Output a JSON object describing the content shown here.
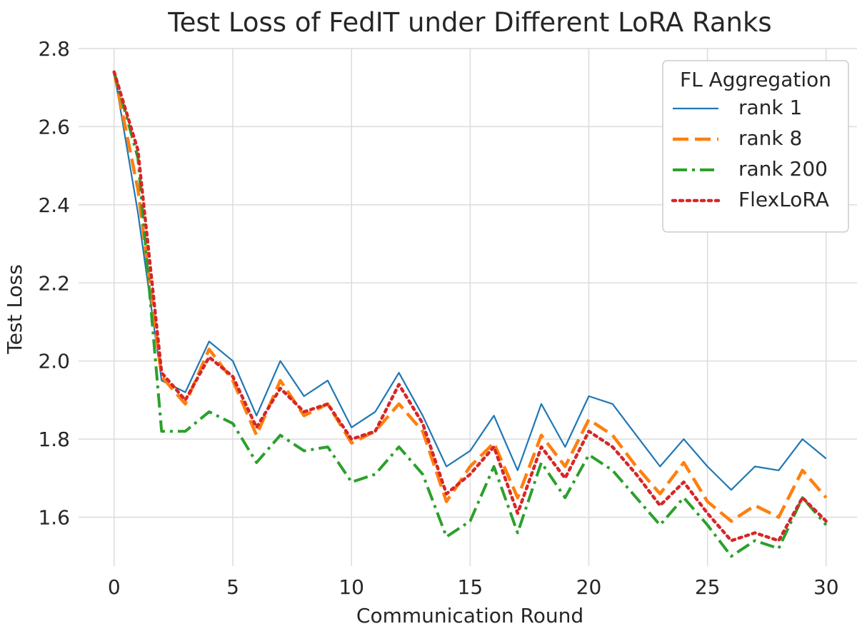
{
  "chart_data": {
    "type": "line",
    "title": "Test Loss of FedIT under Different LoRA Ranks",
    "xlabel": "Communication Round",
    "ylabel": "Test Loss",
    "xlim": [
      -1.5,
      31.3
    ],
    "ylim": [
      1.475,
      2.8
    ],
    "xticks": [
      0,
      5,
      10,
      15,
      20,
      25,
      30
    ],
    "yticks": [
      1.6,
      1.8,
      2.0,
      2.2,
      2.4,
      2.6,
      2.8
    ],
    "grid": true,
    "legend": {
      "title": "FL Aggregation",
      "position": "top-right"
    },
    "x": [
      0,
      1,
      2,
      3,
      4,
      5,
      6,
      7,
      8,
      9,
      10,
      11,
      12,
      13,
      14,
      15,
      16,
      17,
      18,
      19,
      20,
      21,
      22,
      23,
      24,
      25,
      26,
      27,
      28,
      29,
      30
    ],
    "series": [
      {
        "name": "rank 1",
        "color": "#1f77b4",
        "dash": "solid",
        "values": [
          2.74,
          2.38,
          1.95,
          1.92,
          2.05,
          2.0,
          1.86,
          2.0,
          1.91,
          1.95,
          1.83,
          1.87,
          1.97,
          1.86,
          1.73,
          1.77,
          1.86,
          1.72,
          1.89,
          1.78,
          1.91,
          1.89,
          1.81,
          1.73,
          1.8,
          1.73,
          1.67,
          1.73,
          1.72,
          1.8,
          1.75
        ]
      },
      {
        "name": "rank 8",
        "color": "#ff7f0e",
        "dash": "dashed",
        "values": [
          2.74,
          2.44,
          1.96,
          1.89,
          2.03,
          1.95,
          1.81,
          1.95,
          1.86,
          1.89,
          1.79,
          1.82,
          1.89,
          1.82,
          1.64,
          1.73,
          1.79,
          1.65,
          1.81,
          1.73,
          1.85,
          1.81,
          1.73,
          1.66,
          1.74,
          1.64,
          1.59,
          1.63,
          1.6,
          1.72,
          1.65
        ]
      },
      {
        "name": "rank 200",
        "color": "#2ca02c",
        "dash": "dashdot",
        "values": [
          2.74,
          2.52,
          1.82,
          1.82,
          1.87,
          1.84,
          1.74,
          1.81,
          1.77,
          1.78,
          1.69,
          1.71,
          1.78,
          1.71,
          1.55,
          1.59,
          1.73,
          1.56,
          1.74,
          1.65,
          1.76,
          1.72,
          1.65,
          1.58,
          1.65,
          1.58,
          1.5,
          1.54,
          1.52,
          1.65,
          1.58
        ]
      },
      {
        "name": "FlexLoRA",
        "color": "#d62728",
        "dash": "dotted",
        "values": [
          2.74,
          2.54,
          1.97,
          1.9,
          2.01,
          1.96,
          1.83,
          1.93,
          1.87,
          1.89,
          1.8,
          1.82,
          1.94,
          1.84,
          1.66,
          1.71,
          1.78,
          1.61,
          1.78,
          1.7,
          1.82,
          1.78,
          1.71,
          1.63,
          1.69,
          1.61,
          1.54,
          1.56,
          1.54,
          1.65,
          1.59
        ]
      }
    ]
  }
}
